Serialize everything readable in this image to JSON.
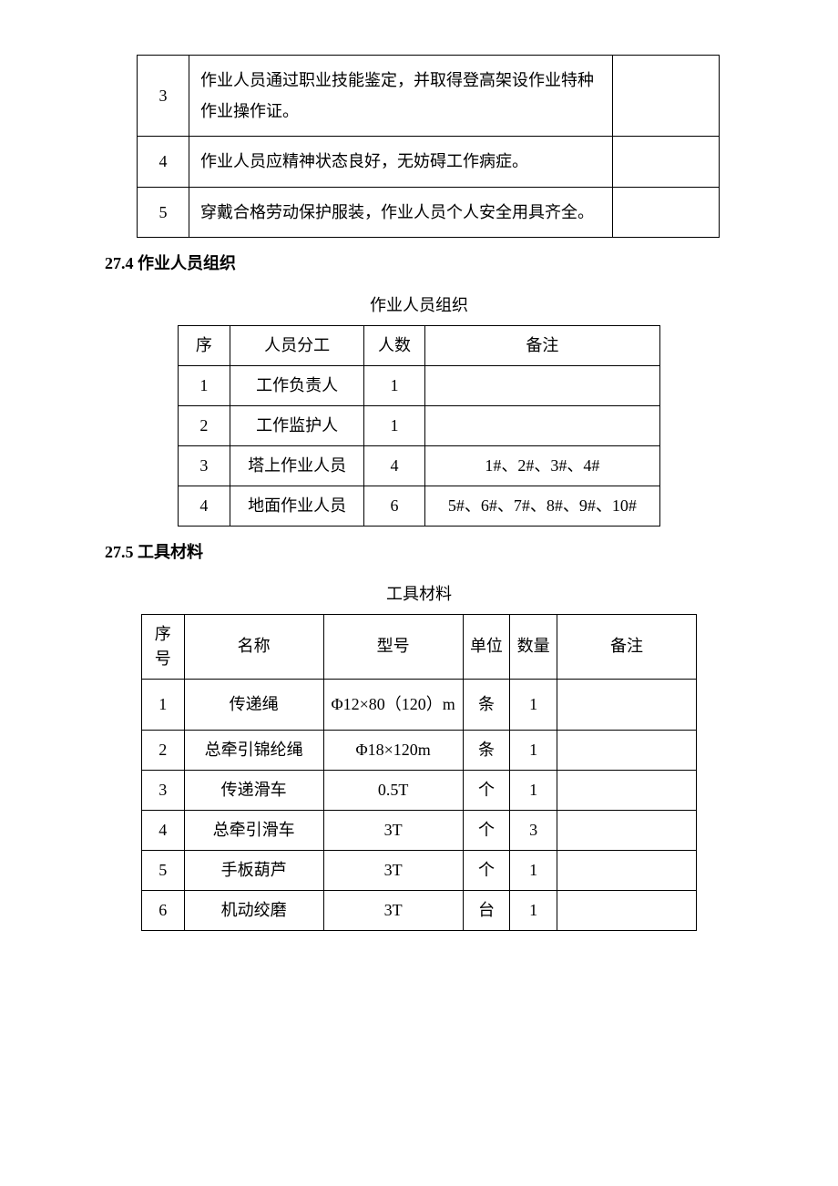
{
  "table1": {
    "rows": [
      {
        "num": "3",
        "desc": "作业人员通过职业技能鉴定，并取得登高架设作业特种作业操作证。",
        "note": ""
      },
      {
        "num": "4",
        "desc": "作业人员应精神状态良好，无妨碍工作病症。",
        "note": ""
      },
      {
        "num": "5",
        "desc": "穿戴合格劳动保护服装，作业人员个人安全用具齐全。",
        "note": ""
      }
    ]
  },
  "section2": {
    "heading": "27.4 作业人员组织",
    "caption": "作业人员组织",
    "headers": [
      "序",
      "人员分工",
      "人数",
      "备注"
    ],
    "rows": [
      {
        "num": "1",
        "role": "工作负责人",
        "count": "1",
        "note": ""
      },
      {
        "num": "2",
        "role": "工作监护人",
        "count": "1",
        "note": ""
      },
      {
        "num": "3",
        "role": "塔上作业人员",
        "count": "4",
        "note": "1#、2#、3#、4#"
      },
      {
        "num": "4",
        "role": "地面作业人员",
        "count": "6",
        "note": "5#、6#、7#、8#、9#、10#"
      }
    ]
  },
  "section3": {
    "heading": "27.5 工具材料",
    "caption": "工具材料",
    "headers": {
      "num": "序号",
      "name": "名称",
      "model": "型号",
      "unit": "单位",
      "qty": "数量",
      "note": "备注"
    },
    "rows": [
      {
        "num": "1",
        "name": "传递绳",
        "model": "Φ12×80（120）m",
        "unit": "条",
        "qty": "1",
        "note": ""
      },
      {
        "num": "2",
        "name": "总牵引锦纶绳",
        "model": "Φ18×120m",
        "unit": "条",
        "qty": "1",
        "note": ""
      },
      {
        "num": "3",
        "name": "传递滑车",
        "model": "0.5T",
        "unit": "个",
        "qty": "1",
        "note": ""
      },
      {
        "num": "4",
        "name": "总牵引滑车",
        "model": "3T",
        "unit": "个",
        "qty": "3",
        "note": ""
      },
      {
        "num": "5",
        "name": "手板葫芦",
        "model": "3T",
        "unit": "个",
        "qty": "1",
        "note": ""
      },
      {
        "num": "6",
        "name": "机动绞磨",
        "model": "3T",
        "unit": "台",
        "qty": "1",
        "note": ""
      }
    ]
  }
}
